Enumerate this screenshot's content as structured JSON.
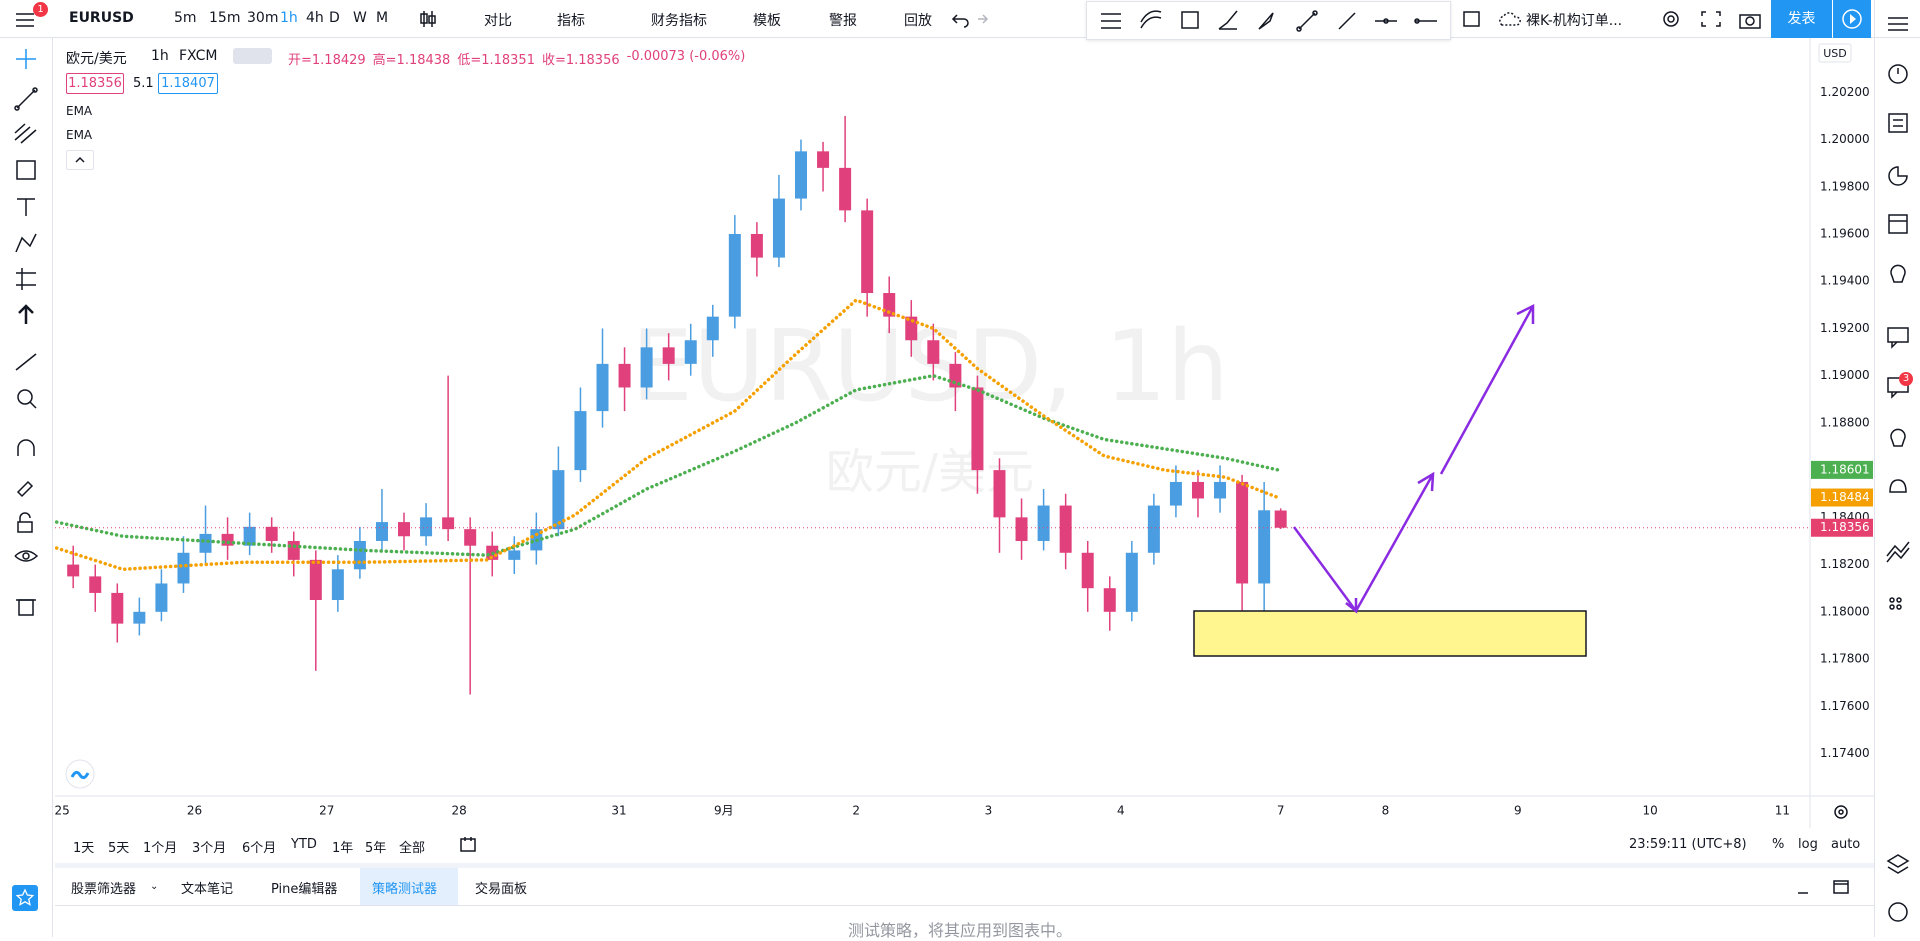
{
  "toolbar": {
    "symbol": "EURUSD",
    "badge": "1",
    "intervals": [
      "5m",
      "15m",
      "30m",
      "1h",
      "4h",
      "D",
      "W",
      "M"
    ],
    "active_interval": 3,
    "buttons": [
      "对比",
      "指标",
      "财务指标",
      "模板",
      "警报",
      "回放"
    ],
    "layout_name": "裸K-机构订单...",
    "publish": "发表"
  },
  "legend": {
    "symbol": "欧元/美元",
    "interval": "1h",
    "source": "FXCM",
    "ohlc": [
      "开=1.18429",
      "高=1.18438",
      "低=1.18351",
      "收=1.18356",
      "-0.00073 (-0.06%)"
    ],
    "bid": "1.18356",
    "spread": "5.1",
    "ask": "1.18407"
  },
  "chart_data": {
    "type": "candlestick",
    "title": "EURUSD, 1h",
    "subtitle": "欧元/美元",
    "currency": "USD",
    "x": [
      2,
      6,
      10,
      14,
      18,
      22,
      26,
      30,
      34,
      38,
      42,
      46,
      50,
      54,
      58,
      62,
      66,
      70,
      74,
      78,
      82,
      86,
      90,
      94,
      98,
      102,
      106,
      110,
      114,
      118,
      122,
      126,
      130,
      134,
      138,
      142,
      146,
      150,
      154,
      158,
      162,
      166,
      170,
      174,
      178,
      182,
      186,
      190,
      194,
      198,
      202,
      206,
      210,
      214,
      218,
      221
    ],
    "candles": {
      "open": [
        1.182,
        1.1815,
        1.1808,
        1.1795,
        1.18,
        1.1812,
        1.1825,
        1.1833,
        1.1828,
        1.1836,
        1.183,
        1.1822,
        1.1805,
        1.1818,
        1.183,
        1.1838,
        1.1832,
        1.184,
        1.1835,
        1.1828,
        1.1822,
        1.1826,
        1.1835,
        1.186,
        1.1885,
        1.1905,
        1.1895,
        1.1912,
        1.1905,
        1.1915,
        1.1925,
        1.196,
        1.195,
        1.1975,
        1.1995,
        1.1988,
        1.197,
        1.1935,
        1.1925,
        1.1915,
        1.1905,
        1.1895,
        1.186,
        1.184,
        1.183,
        1.1845,
        1.1825,
        1.181,
        1.18,
        1.1825,
        1.1845,
        1.1855,
        1.1848,
        1.1855,
        1.1812,
        1.18429
      ],
      "high": [
        1.1828,
        1.182,
        1.1812,
        1.1806,
        1.1818,
        1.1832,
        1.1845,
        1.184,
        1.1842,
        1.184,
        1.1834,
        1.1826,
        1.1824,
        1.1836,
        1.1852,
        1.1842,
        1.1846,
        1.19,
        1.184,
        1.1834,
        1.1832,
        1.1842,
        1.187,
        1.1895,
        1.192,
        1.1912,
        1.192,
        1.1918,
        1.1922,
        1.193,
        1.1968,
        1.1965,
        1.1985,
        1.2,
        1.1999,
        1.201,
        1.1975,
        1.1942,
        1.1932,
        1.1922,
        1.191,
        1.19,
        1.1865,
        1.1848,
        1.1852,
        1.185,
        1.183,
        1.1815,
        1.183,
        1.185,
        1.1862,
        1.186,
        1.1862,
        1.1858,
        1.1855,
        1.18438
      ],
      "low": [
        1.181,
        1.18,
        1.1787,
        1.179,
        1.1796,
        1.1808,
        1.182,
        1.1822,
        1.1824,
        1.1825,
        1.1815,
        1.1775,
        1.18,
        1.1814,
        1.1826,
        1.1826,
        1.1828,
        1.183,
        1.1765,
        1.1815,
        1.1816,
        1.182,
        1.1832,
        1.1855,
        1.1878,
        1.1885,
        1.189,
        1.1898,
        1.19,
        1.1908,
        1.192,
        1.1942,
        1.1946,
        1.197,
        1.1978,
        1.1965,
        1.1925,
        1.1918,
        1.1908,
        1.1898,
        1.1885,
        1.185,
        1.1825,
        1.1822,
        1.1826,
        1.1818,
        1.18,
        1.1792,
        1.1796,
        1.182,
        1.184,
        1.184,
        1.1842,
        1.18,
        1.1782,
        1.18351
      ],
      "close": [
        1.1815,
        1.1808,
        1.1795,
        1.18,
        1.1812,
        1.1825,
        1.1833,
        1.1828,
        1.1836,
        1.183,
        1.1822,
        1.1805,
        1.1818,
        1.183,
        1.1838,
        1.1832,
        1.184,
        1.1835,
        1.1828,
        1.1822,
        1.1826,
        1.1835,
        1.186,
        1.1885,
        1.1905,
        1.1895,
        1.1912,
        1.1905,
        1.1915,
        1.1925,
        1.196,
        1.195,
        1.1975,
        1.1995,
        1.1988,
        1.197,
        1.1935,
        1.1925,
        1.1915,
        1.1905,
        1.1895,
        1.186,
        1.184,
        1.183,
        1.1845,
        1.1825,
        1.181,
        1.18,
        1.1825,
        1.1845,
        1.1855,
        1.1848,
        1.1855,
        1.1812,
        1.1843,
        1.18356
      ]
    },
    "up_color": "#4a9de0",
    "down_color": "#e0407b",
    "last_label": "1.18356",
    "last_color": "#e5416e",
    "series": [
      {
        "name": "EMA",
        "color": "#4caf50",
        "last_label": "1.18601",
        "x": [
          -1,
          11,
          33,
          55,
          77,
          93,
          106,
          122,
          133,
          144,
          158,
          166,
          178,
          189,
          200,
          211,
          220.5
        ],
        "values": [
          1.1838,
          1.1832,
          1.1829,
          1.1826,
          1.1824,
          1.1835,
          1.1852,
          1.1868,
          1.188,
          1.1894,
          1.19,
          1.1894,
          1.1882,
          1.1873,
          1.1869,
          1.1865,
          1.18601
        ]
      },
      {
        "name": "EMA",
        "color": "#f5a000",
        "last_label": "1.18484",
        "x": [
          -1,
          11,
          33,
          55,
          77,
          93,
          106,
          122,
          133,
          144,
          158,
          166,
          178,
          189,
          200,
          211,
          220.5
        ],
        "values": [
          1.1827,
          1.1818,
          1.1821,
          1.1821,
          1.1822,
          1.1841,
          1.1865,
          1.1885,
          1.1909,
          1.1932,
          1.192,
          1.1903,
          1.1883,
          1.1866,
          1.186,
          1.1857,
          1.18484
        ]
      }
    ],
    "xlim": [
      -1.3,
      317
    ],
    "ylim": [
      1.1722,
      1.2043
    ],
    "xticks": [
      {
        "value": 0,
        "label": "25"
      },
      {
        "value": 24,
        "label": "26"
      },
      {
        "value": 48,
        "label": "27"
      },
      {
        "value": 72,
        "label": "28"
      },
      {
        "value": 101,
        "label": "31"
      },
      {
        "value": 120,
        "label": "9月"
      },
      {
        "value": 144,
        "label": "2"
      },
      {
        "value": 168,
        "label": "3"
      },
      {
        "value": 192,
        "label": "4"
      },
      {
        "value": 221,
        "label": "7"
      },
      {
        "value": 240,
        "label": "8"
      },
      {
        "value": 264,
        "label": "9"
      },
      {
        "value": 288,
        "label": "10"
      },
      {
        "value": 312,
        "label": "11"
      }
    ],
    "yticks": [
      {
        "value": 1.174,
        "label": "1.17400"
      },
      {
        "value": 1.176,
        "label": "1.17600"
      },
      {
        "value": 1.178,
        "label": "1.17800"
      },
      {
        "value": 1.18,
        "label": "1.18000"
      },
      {
        "value": 1.182,
        "label": "1.18200"
      },
      {
        "value": 1.184,
        "label": "1.18400"
      },
      {
        "value": 1.186,
        "label": "1.18600"
      },
      {
        "value": 1.188,
        "label": "1.18800"
      },
      {
        "value": 1.19,
        "label": "1.19000"
      },
      {
        "value": 1.192,
        "label": "1.19200"
      },
      {
        "value": 1.194,
        "label": "1.19400"
      },
      {
        "value": 1.196,
        "label": "1.19600"
      },
      {
        "value": 1.198,
        "label": "1.19800"
      },
      {
        "value": 1.2,
        "label": "1.20000"
      },
      {
        "value": 1.202,
        "label": "1.20200"
      }
    ],
    "grid": false
  },
  "range_bar": {
    "ranges": [
      "1天",
      "5天",
      "1个月",
      "3个月",
      "6个月",
      "YTD",
      "1年",
      "5年",
      "全部"
    ],
    "clock": "23:59:11 (UTC+8)",
    "options": [
      "%",
      "log",
      "auto"
    ]
  },
  "bottom_panel": {
    "tabs": [
      "股票筛选器",
      "文本笔记",
      "Pine编辑器",
      "策略测试器",
      "交易面板"
    ],
    "active_tab": 3,
    "message": "测试策略，将其应用到图表中。"
  }
}
